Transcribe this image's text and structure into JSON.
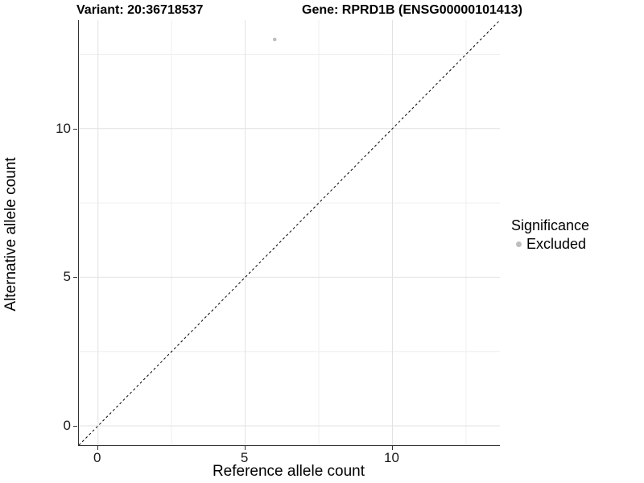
{
  "titles": {
    "left": "Variant: 20:36718537",
    "right": "Gene: RPRD1B (ENSG00000101413)"
  },
  "legend": {
    "title": "Significance",
    "entries": [
      {
        "label": "Excluded",
        "color": "#bebebe"
      }
    ],
    "position": "right"
  },
  "chart_data": {
    "type": "scatter",
    "title_left": "Variant: 20:36718537",
    "title_right": "Gene: RPRD1B (ENSG00000101413)",
    "xlabel": "Reference allele count",
    "ylabel": "Alternative allele count",
    "xlim": [
      -0.65,
      13.65
    ],
    "ylim": [
      -0.65,
      13.65
    ],
    "x_major_ticks": [
      0,
      5,
      10
    ],
    "y_major_ticks": [
      0,
      5,
      10
    ],
    "x_minor_ticks": [
      2.5,
      7.5,
      12.5
    ],
    "y_minor_ticks": [
      2.5,
      7.5,
      12.5
    ],
    "grid": {
      "enabled": true,
      "major_color": "#e2e2e2",
      "minor_color": "#efefef"
    },
    "axis_line_color": "#333333",
    "reference_line": {
      "kind": "identity",
      "slope": 1,
      "intercept": 0,
      "style": "dashed",
      "color": "#000000"
    },
    "series": [
      {
        "name": "Excluded",
        "color": "#bebebe",
        "point_radius": 2.3,
        "points": [
          {
            "x": 6,
            "y": 13
          }
        ]
      }
    ],
    "legend_title": "Significance"
  }
}
